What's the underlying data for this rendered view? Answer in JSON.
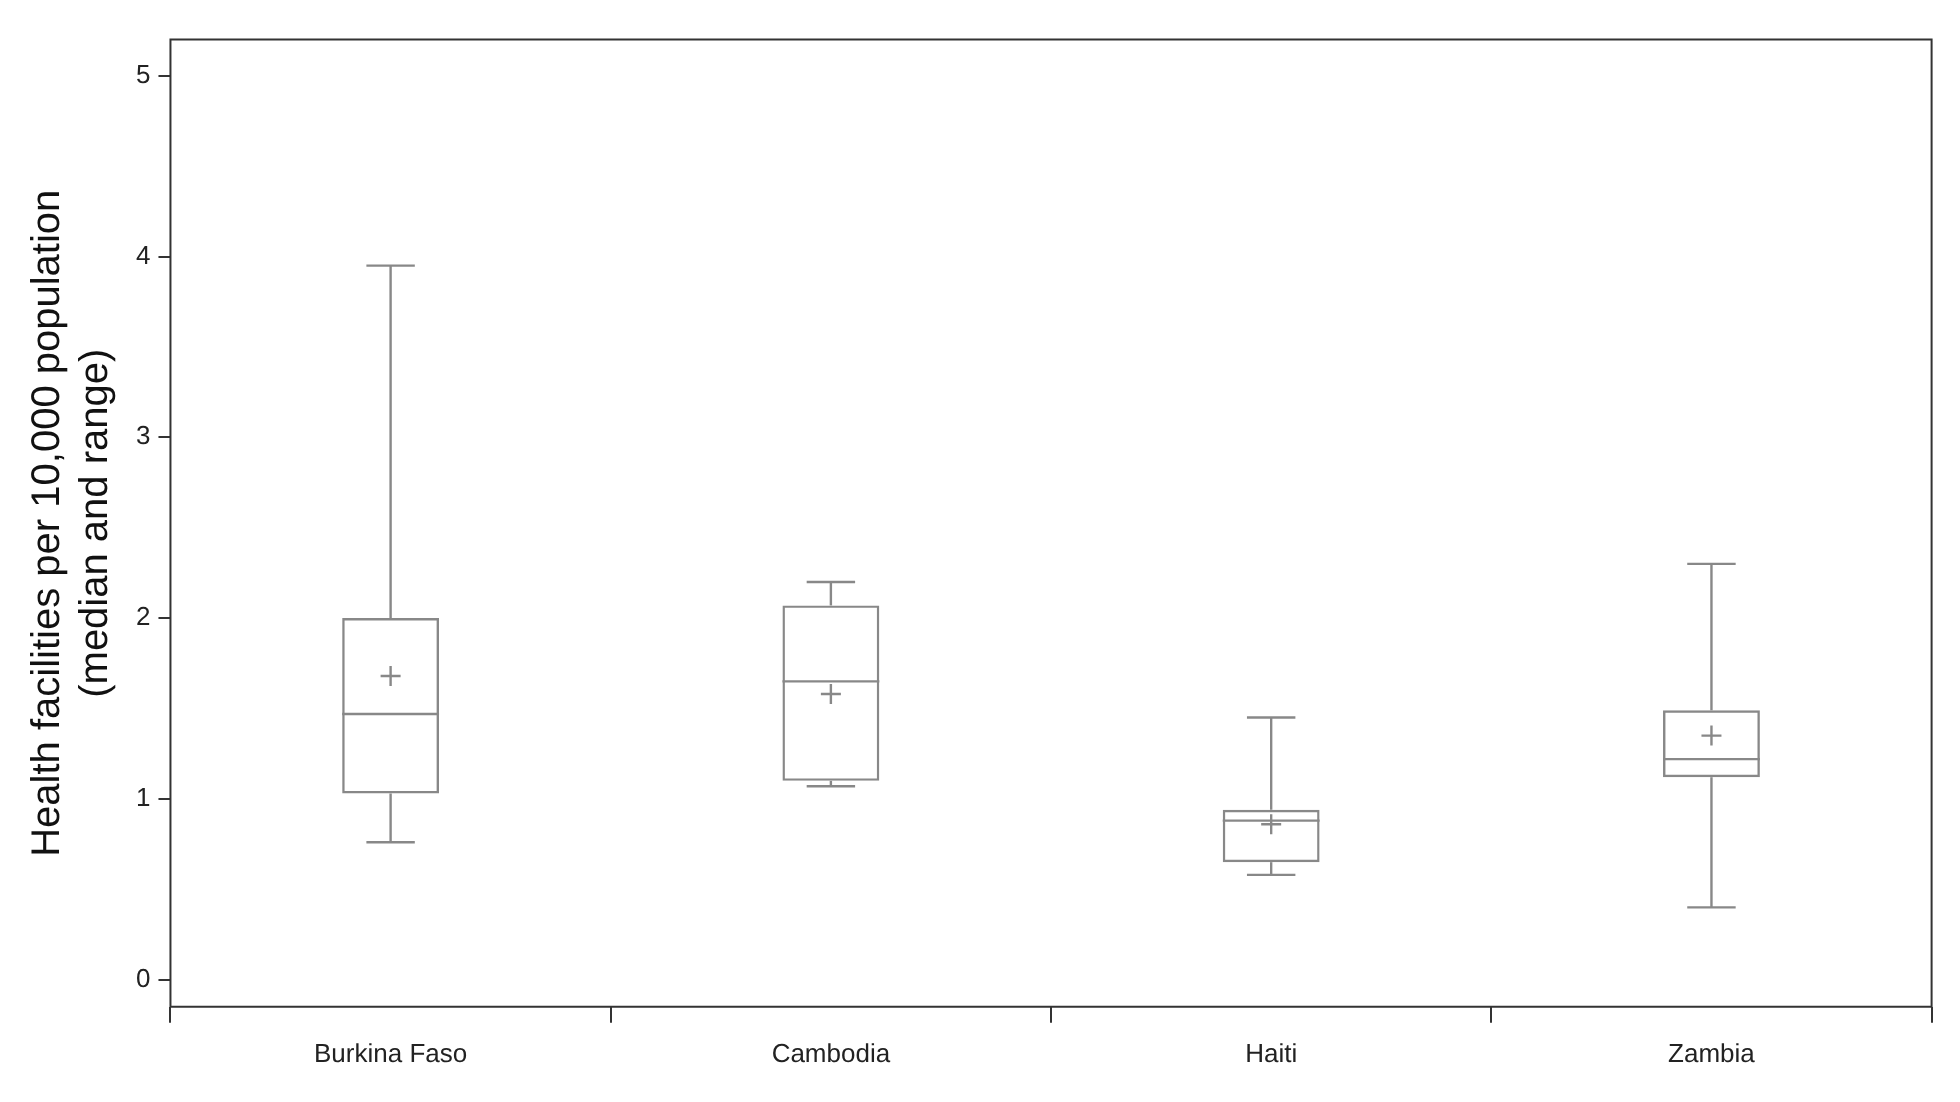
{
  "chart_data": {
    "type": "box",
    "ylabel": "Health facilities per 10,000 population\n(median and range)",
    "categories": [
      "Burkina Faso",
      "Cambodia",
      "Haiti",
      "Zambia"
    ],
    "color": "#888888",
    "boxes": [
      {
        "low": 0.76,
        "q1": 1.03,
        "median": 1.47,
        "q3": 2.0,
        "high": 3.95,
        "mean": 1.68
      },
      {
        "low": 1.07,
        "q1": 1.1,
        "median": 1.65,
        "q3": 2.07,
        "high": 2.2,
        "mean": 1.58
      },
      {
        "low": 0.58,
        "q1": 0.65,
        "median": 0.88,
        "q3": 0.94,
        "high": 1.45,
        "mean": 0.86
      },
      {
        "low": 0.4,
        "q1": 1.12,
        "median": 1.22,
        "q3": 1.49,
        "high": 2.3,
        "mean": 1.35
      }
    ],
    "ylim": [
      -0.15,
      5.2
    ],
    "yticks": [
      0,
      1,
      2,
      3,
      4,
      5
    ],
    "grid": false
  }
}
